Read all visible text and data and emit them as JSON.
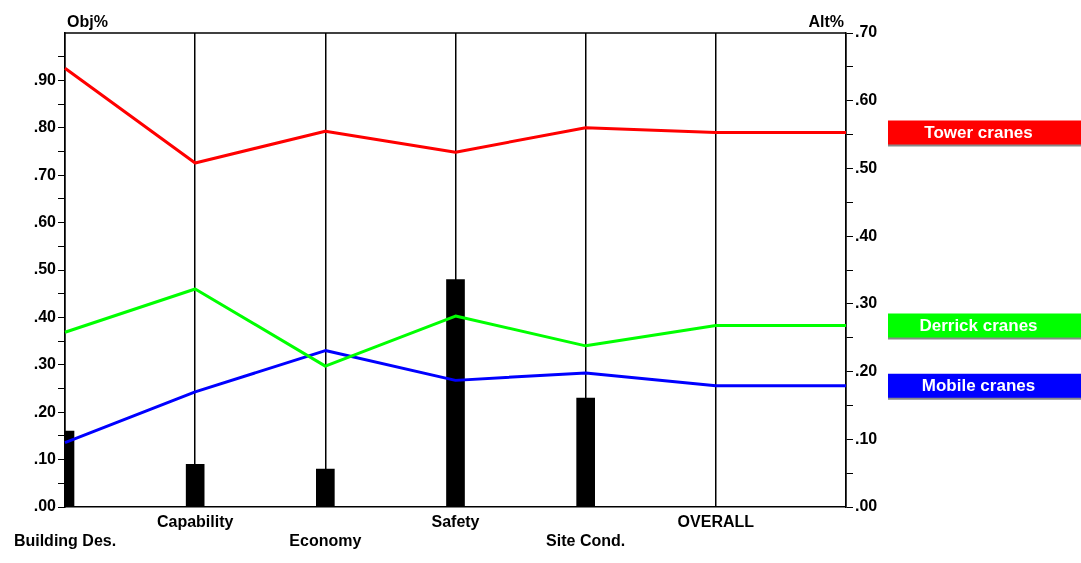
{
  "chart_data": {
    "type": "line",
    "ylabel": "Obj%",
    "y2label": "Alt%",
    "categories": [
      "Building Des.",
      "Capability",
      "Economy",
      "Safety",
      "Site Cond.",
      "OVERALL",
      null
    ],
    "series": [
      {
        "type": "bar",
        "color": "#000000",
        "values": [
          0.16,
          0.09,
          0.08,
          0.48,
          0.23,
          null,
          null
        ]
      },
      {
        "name": "Tower cranes",
        "axis": "y2",
        "color": "#ff0000",
        "values": [
          0.648,
          0.508,
          0.555,
          0.524,
          0.56,
          0.553,
          0.553
        ]
      },
      {
        "name": "Derrick cranes",
        "axis": "y2",
        "color": "#00ff00",
        "values": [
          0.258,
          0.322,
          0.208,
          0.282,
          0.238,
          0.268,
          0.268
        ]
      },
      {
        "name": "Mobile cranes",
        "axis": "y2",
        "color": "#0000ff",
        "values": [
          0.095,
          0.17,
          0.231,
          0.187,
          0.198,
          0.179,
          0.179
        ]
      }
    ],
    "ylim": [
      0,
      1
    ],
    "yticks": [
      {
        "value": 0,
        "label": ".00"
      },
      {
        "value": 0.05,
        "label": null
      },
      {
        "value": 0.1,
        "label": ".10"
      },
      {
        "value": 0.15,
        "label": null
      },
      {
        "value": 0.2,
        "label": ".20"
      },
      {
        "value": 0.25,
        "label": null
      },
      {
        "value": 0.3,
        "label": ".30"
      },
      {
        "value": 0.35,
        "label": null
      },
      {
        "value": 0.4,
        "label": ".40"
      },
      {
        "value": 0.45,
        "label": null
      },
      {
        "value": 0.5,
        "label": ".50"
      },
      {
        "value": 0.55,
        "label": null
      },
      {
        "value": 0.6,
        "label": ".60"
      },
      {
        "value": 0.65,
        "label": null
      },
      {
        "value": 0.7,
        "label": ".70"
      },
      {
        "value": 0.75,
        "label": null
      },
      {
        "value": 0.8,
        "label": ".80"
      },
      {
        "value": 0.85,
        "label": null
      },
      {
        "value": 0.9,
        "label": ".90"
      },
      {
        "value": 0.95,
        "label": null
      }
    ],
    "y2lim": [
      0,
      0.7
    ],
    "y2ticks": [
      {
        "value": 0,
        "label": ".00"
      },
      {
        "value": 0.05,
        "label": null
      },
      {
        "value": 0.1,
        "label": ".10"
      },
      {
        "value": 0.15,
        "label": null
      },
      {
        "value": 0.2,
        "label": ".20"
      },
      {
        "value": 0.25,
        "label": null
      },
      {
        "value": 0.3,
        "label": ".30"
      },
      {
        "value": 0.35,
        "label": null
      },
      {
        "value": 0.4,
        "label": ".40"
      },
      {
        "value": 0.45,
        "label": null
      },
      {
        "value": 0.5,
        "label": ".50"
      },
      {
        "value": 0.55,
        "label": null
      },
      {
        "value": 0.6,
        "label": ".60"
      },
      {
        "value": 0.65,
        "label": null
      },
      {
        "value": 0.7,
        "label": ".70"
      }
    ],
    "grid": "x",
    "legend": "right",
    "marker": "none",
    "line_style": "solid"
  }
}
